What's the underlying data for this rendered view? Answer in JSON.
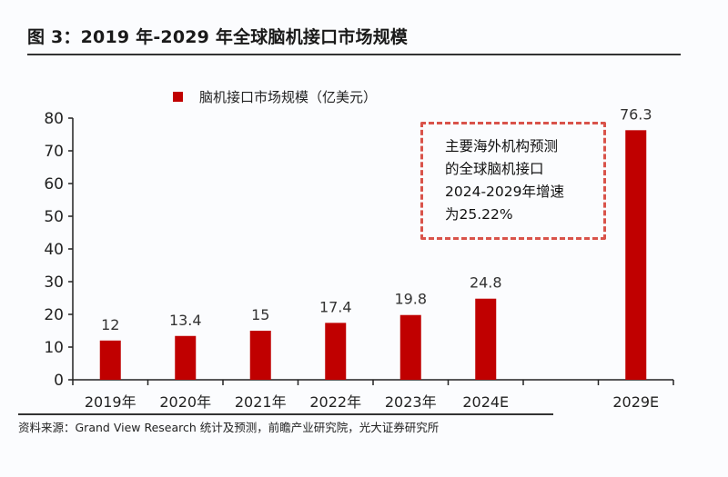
{
  "chart_data": {
    "type": "bar",
    "title": "图 3：2019 年-2029 年全球脑机接口市场规模",
    "legend": [
      "脑机接口市场规模（亿美元）"
    ],
    "legend_position": "top",
    "categories": [
      "2019年",
      "2020年",
      "2021年",
      "2022年",
      "2023年",
      "2024E",
      "",
      "2029E"
    ],
    "series": [
      {
        "name": "脑机接口市场规模（亿美元）",
        "values": [
          12,
          13.4,
          15,
          17.4,
          19.8,
          24.8,
          null,
          76.3
        ]
      }
    ],
    "data_labels": [
      "12",
      "13.4",
      "15",
      "17.4",
      "19.8",
      "24.8",
      "",
      "76.3"
    ],
    "yticks": [
      "0",
      "10",
      "20",
      "30",
      "40",
      "50",
      "60",
      "70",
      "80"
    ],
    "ylim": [
      0,
      80
    ],
    "xlabel": "",
    "ylabel": "",
    "grid": false,
    "bar_color": "#c00000",
    "annotation": [
      "主要海外机构预测",
      "的全球脑机接口",
      "2024-2029年增速",
      "为25.22%"
    ],
    "annotation_border_color": "#d9534a",
    "source": "资料来源：Grand View Research 统计及预测，前瞻产业研究院，光大证券研究所"
  }
}
